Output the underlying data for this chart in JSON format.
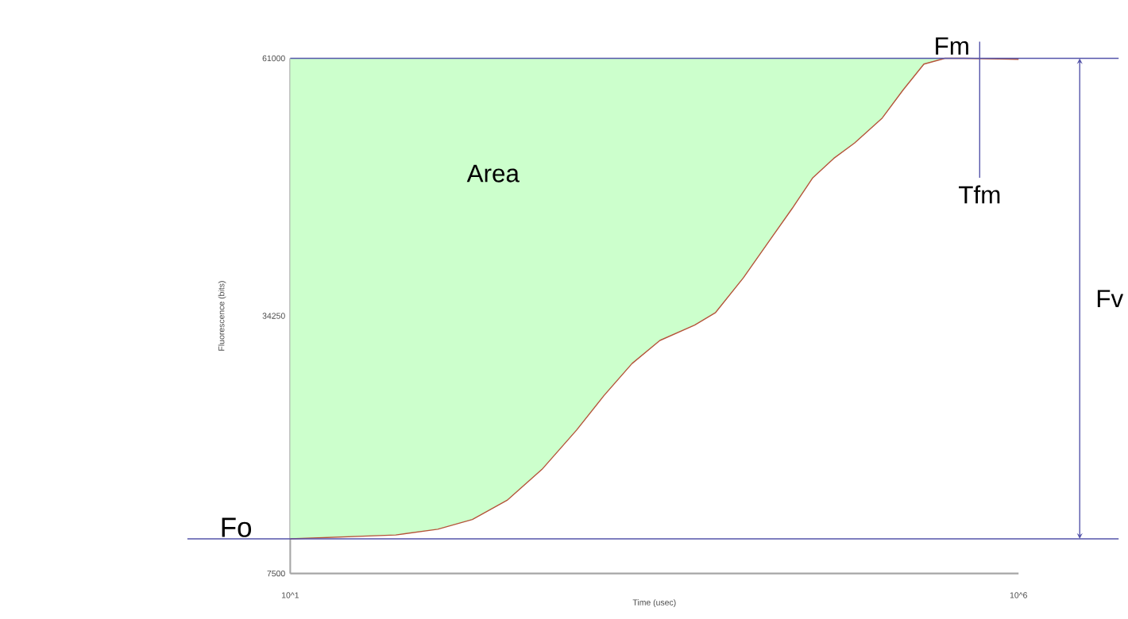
{
  "chart_data": {
    "type": "line",
    "xlabel": "Time (usec)",
    "ylabel": "Fluorescence (bits)",
    "log": "x",
    "x": [
      10,
      53,
      103,
      178,
      308,
      534,
      925,
      1430,
      2220,
      3450,
      5980,
      8320,
      12900,
      20000,
      27900,
      38700,
      53800,
      74800,
      116000,
      161000,
      224000,
      312000,
      420000,
      1000000
    ],
    "series": [
      {
        "color": "#b5543a",
        "values": [
          11100,
          11500,
          12100,
          13100,
          15100,
          18300,
          22400,
          26000,
          29300,
          31700,
          33300,
          34600,
          38200,
          42300,
          45400,
          48600,
          50600,
          52200,
          54800,
          57700,
          60400,
          61000,
          61000,
          60900
        ],
        "lower": [
          11100,
          11500,
          12100,
          13100,
          15100,
          18300,
          22400,
          26000,
          29300,
          31700,
          33300,
          34600,
          38200,
          42300,
          45400,
          48600,
          50600,
          52200,
          54800,
          57700,
          60400,
          61000,
          61000,
          60900
        ],
        "upper": [
          61000,
          61000,
          61000,
          61000,
          61000,
          61000,
          61000,
          61000,
          61000,
          61000,
          61000,
          61000,
          61000,
          61000,
          61000,
          61000,
          61000,
          61000,
          61000,
          61000,
          61000,
          61000,
          61000,
          61000
        ]
      }
    ],
    "xlim": [
      10,
      1000000
    ],
    "ylim": [
      7500,
      61000
    ],
    "xticks": [
      {
        "value": 10,
        "label": "10^1"
      },
      {
        "value": 1000000,
        "label": "10^6"
      }
    ],
    "yticks": [
      7500,
      34250,
      61000
    ],
    "ref_lines": [
      {
        "axis": "y",
        "value": 11100,
        "label": "Fo",
        "color": "#5555aa"
      },
      {
        "axis": "y",
        "value": 61000,
        "label": "Fm",
        "color": "#5555aa"
      },
      {
        "axis": "x",
        "value": 541000,
        "label": "Tfm",
        "color": "#5555aa"
      }
    ],
    "annotations": [
      "Area",
      "Fv"
    ]
  }
}
